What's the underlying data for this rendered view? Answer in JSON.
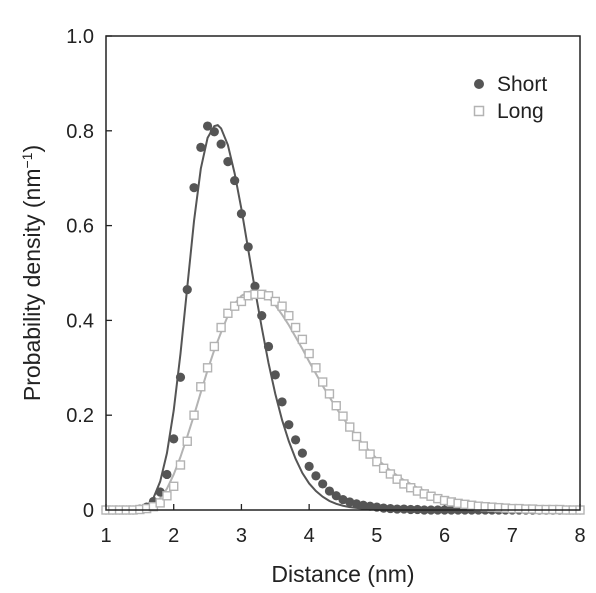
{
  "chart_data": {
    "type": "scatter",
    "xlabel": "Distance (nm)",
    "ylabel": {
      "base": "Probability density (nm",
      "sup": "−1",
      "close": ")"
    },
    "xlim": [
      1,
      8
    ],
    "ylim": [
      0,
      1.0
    ],
    "x_ticks": [
      "1",
      "2",
      "3",
      "4",
      "5",
      "6",
      "7",
      "8"
    ],
    "y_ticks": [
      "0",
      "0.2",
      "0.4",
      "0.6",
      "0.8",
      "1.0"
    ],
    "legend_position": "top-right",
    "series": [
      {
        "name": "Short",
        "marker": "filled-circle",
        "color": "#555555",
        "points": [
          {
            "x": 1.0,
            "y": 0.0
          },
          {
            "x": 1.1,
            "y": 0.0
          },
          {
            "x": 1.2,
            "y": 0.0
          },
          {
            "x": 1.3,
            "y": 0.0
          },
          {
            "x": 1.4,
            "y": 0.0
          },
          {
            "x": 1.5,
            "y": 0.002
          },
          {
            "x": 1.6,
            "y": 0.006
          },
          {
            "x": 1.7,
            "y": 0.018
          },
          {
            "x": 1.8,
            "y": 0.038
          },
          {
            "x": 1.9,
            "y": 0.075
          },
          {
            "x": 2.0,
            "y": 0.15
          },
          {
            "x": 2.1,
            "y": 0.28
          },
          {
            "x": 2.2,
            "y": 0.465
          },
          {
            "x": 2.3,
            "y": 0.68
          },
          {
            "x": 2.4,
            "y": 0.765
          },
          {
            "x": 2.5,
            "y": 0.81
          },
          {
            "x": 2.6,
            "y": 0.798
          },
          {
            "x": 2.7,
            "y": 0.772
          },
          {
            "x": 2.8,
            "y": 0.735
          },
          {
            "x": 2.9,
            "y": 0.695
          },
          {
            "x": 3.0,
            "y": 0.625
          },
          {
            "x": 3.1,
            "y": 0.555
          },
          {
            "x": 3.2,
            "y": 0.472
          },
          {
            "x": 3.3,
            "y": 0.41
          },
          {
            "x": 3.4,
            "y": 0.345
          },
          {
            "x": 3.5,
            "y": 0.285
          },
          {
            "x": 3.6,
            "y": 0.228
          },
          {
            "x": 3.7,
            "y": 0.18
          },
          {
            "x": 3.8,
            "y": 0.148
          },
          {
            "x": 3.9,
            "y": 0.12
          },
          {
            "x": 4.0,
            "y": 0.092
          },
          {
            "x": 4.1,
            "y": 0.072
          },
          {
            "x": 4.2,
            "y": 0.055
          },
          {
            "x": 4.3,
            "y": 0.04
          },
          {
            "x": 4.4,
            "y": 0.03
          },
          {
            "x": 4.5,
            "y": 0.022
          },
          {
            "x": 4.6,
            "y": 0.017
          },
          {
            "x": 4.7,
            "y": 0.013
          },
          {
            "x": 4.8,
            "y": 0.01
          },
          {
            "x": 4.9,
            "y": 0.008
          },
          {
            "x": 5.0,
            "y": 0.006
          },
          {
            "x": 5.1,
            "y": 0.004
          },
          {
            "x": 5.2,
            "y": 0.003
          },
          {
            "x": 5.3,
            "y": 0.002
          },
          {
            "x": 5.4,
            "y": 0.002
          },
          {
            "x": 5.5,
            "y": 0.001
          },
          {
            "x": 5.6,
            "y": 0.001
          },
          {
            "x": 5.7,
            "y": 0.0
          },
          {
            "x": 5.8,
            "y": 0.0
          },
          {
            "x": 5.9,
            "y": 0.0
          },
          {
            "x": 6.0,
            "y": 0.0
          },
          {
            "x": 6.1,
            "y": 0.0
          },
          {
            "x": 6.2,
            "y": 0.0
          },
          {
            "x": 6.3,
            "y": 0.0
          },
          {
            "x": 6.4,
            "y": 0.0
          },
          {
            "x": 6.5,
            "y": 0.0
          },
          {
            "x": 6.6,
            "y": 0.0
          },
          {
            "x": 6.7,
            "y": 0.0
          },
          {
            "x": 6.8,
            "y": 0.0
          },
          {
            "x": 6.9,
            "y": 0.0
          },
          {
            "x": 7.0,
            "y": 0.0
          },
          {
            "x": 7.1,
            "y": 0.0
          },
          {
            "x": 7.2,
            "y": 0.0
          },
          {
            "x": 7.3,
            "y": 0.0
          },
          {
            "x": 7.4,
            "y": 0.0
          },
          {
            "x": 7.5,
            "y": 0.0
          },
          {
            "x": 7.6,
            "y": 0.0
          },
          {
            "x": 7.7,
            "y": 0.0
          },
          {
            "x": 7.8,
            "y": 0.0
          },
          {
            "x": 7.9,
            "y": 0.0
          },
          {
            "x": 8.0,
            "y": 0.0
          }
        ],
        "fit": [
          {
            "x": 1.0,
            "y": 0.0
          },
          {
            "x": 1.4,
            "y": 0.0
          },
          {
            "x": 1.6,
            "y": 0.008
          },
          {
            "x": 1.7,
            "y": 0.025
          },
          {
            "x": 1.8,
            "y": 0.06
          },
          {
            "x": 1.9,
            "y": 0.12
          },
          {
            "x": 2.0,
            "y": 0.21
          },
          {
            "x": 2.1,
            "y": 0.33
          },
          {
            "x": 2.2,
            "y": 0.47
          },
          {
            "x": 2.3,
            "y": 0.61
          },
          {
            "x": 2.4,
            "y": 0.72
          },
          {
            "x": 2.5,
            "y": 0.785
          },
          {
            "x": 2.6,
            "y": 0.81
          },
          {
            "x": 2.65,
            "y": 0.812
          },
          {
            "x": 2.7,
            "y": 0.805
          },
          {
            "x": 2.8,
            "y": 0.77
          },
          {
            "x": 2.9,
            "y": 0.71
          },
          {
            "x": 3.0,
            "y": 0.635
          },
          {
            "x": 3.1,
            "y": 0.55
          },
          {
            "x": 3.2,
            "y": 0.465
          },
          {
            "x": 3.3,
            "y": 0.385
          },
          {
            "x": 3.4,
            "y": 0.31
          },
          {
            "x": 3.5,
            "y": 0.245
          },
          {
            "x": 3.6,
            "y": 0.19
          },
          {
            "x": 3.7,
            "y": 0.145
          },
          {
            "x": 3.8,
            "y": 0.108
          },
          {
            "x": 3.9,
            "y": 0.078
          },
          {
            "x": 4.0,
            "y": 0.056
          },
          {
            "x": 4.1,
            "y": 0.04
          },
          {
            "x": 4.2,
            "y": 0.028
          },
          {
            "x": 4.3,
            "y": 0.019
          },
          {
            "x": 4.4,
            "y": 0.013
          },
          {
            "x": 4.5,
            "y": 0.009
          },
          {
            "x": 4.6,
            "y": 0.006
          },
          {
            "x": 4.8,
            "y": 0.003
          },
          {
            "x": 5.0,
            "y": 0.001
          },
          {
            "x": 5.3,
            "y": 0.0
          },
          {
            "x": 8.0,
            "y": 0.0
          }
        ]
      },
      {
        "name": "Long",
        "marker": "open-square",
        "color": "#b3b3b3",
        "points": [
          {
            "x": 1.0,
            "y": 0.0
          },
          {
            "x": 1.1,
            "y": 0.0
          },
          {
            "x": 1.2,
            "y": 0.0
          },
          {
            "x": 1.3,
            "y": 0.0
          },
          {
            "x": 1.4,
            "y": 0.0
          },
          {
            "x": 1.5,
            "y": 0.001
          },
          {
            "x": 1.6,
            "y": 0.003
          },
          {
            "x": 1.7,
            "y": 0.007
          },
          {
            "x": 1.8,
            "y": 0.015
          },
          {
            "x": 1.9,
            "y": 0.03
          },
          {
            "x": 2.0,
            "y": 0.05
          },
          {
            "x": 2.1,
            "y": 0.095
          },
          {
            "x": 2.2,
            "y": 0.145
          },
          {
            "x": 2.3,
            "y": 0.2
          },
          {
            "x": 2.4,
            "y": 0.26
          },
          {
            "x": 2.5,
            "y": 0.3
          },
          {
            "x": 2.6,
            "y": 0.345
          },
          {
            "x": 2.7,
            "y": 0.385
          },
          {
            "x": 2.8,
            "y": 0.415
          },
          {
            "x": 2.9,
            "y": 0.43
          },
          {
            "x": 3.0,
            "y": 0.44
          },
          {
            "x": 3.1,
            "y": 0.452
          },
          {
            "x": 3.2,
            "y": 0.455
          },
          {
            "x": 3.3,
            "y": 0.455
          },
          {
            "x": 3.4,
            "y": 0.452
          },
          {
            "x": 3.5,
            "y": 0.44
          },
          {
            "x": 3.6,
            "y": 0.43
          },
          {
            "x": 3.7,
            "y": 0.41
          },
          {
            "x": 3.8,
            "y": 0.385
          },
          {
            "x": 3.9,
            "y": 0.36
          },
          {
            "x": 4.0,
            "y": 0.33
          },
          {
            "x": 4.1,
            "y": 0.3
          },
          {
            "x": 4.2,
            "y": 0.27
          },
          {
            "x": 4.3,
            "y": 0.245
          },
          {
            "x": 4.4,
            "y": 0.22
          },
          {
            "x": 4.5,
            "y": 0.198
          },
          {
            "x": 4.6,
            "y": 0.175
          },
          {
            "x": 4.7,
            "y": 0.155
          },
          {
            "x": 4.8,
            "y": 0.135
          },
          {
            "x": 4.9,
            "y": 0.118
          },
          {
            "x": 5.0,
            "y": 0.102
          },
          {
            "x": 5.1,
            "y": 0.088
          },
          {
            "x": 5.2,
            "y": 0.076
          },
          {
            "x": 5.3,
            "y": 0.065
          },
          {
            "x": 5.4,
            "y": 0.055
          },
          {
            "x": 5.5,
            "y": 0.047
          },
          {
            "x": 5.6,
            "y": 0.04
          },
          {
            "x": 5.7,
            "y": 0.034
          },
          {
            "x": 5.8,
            "y": 0.029
          },
          {
            "x": 5.9,
            "y": 0.024
          },
          {
            "x": 6.0,
            "y": 0.02
          },
          {
            "x": 6.1,
            "y": 0.017
          },
          {
            "x": 6.2,
            "y": 0.014
          },
          {
            "x": 6.3,
            "y": 0.012
          },
          {
            "x": 6.4,
            "y": 0.01
          },
          {
            "x": 6.5,
            "y": 0.008
          },
          {
            "x": 6.6,
            "y": 0.007
          },
          {
            "x": 6.7,
            "y": 0.006
          },
          {
            "x": 6.8,
            "y": 0.005
          },
          {
            "x": 6.9,
            "y": 0.004
          },
          {
            "x": 7.0,
            "y": 0.003
          },
          {
            "x": 7.1,
            "y": 0.003
          },
          {
            "x": 7.2,
            "y": 0.002
          },
          {
            "x": 7.3,
            "y": 0.002
          },
          {
            "x": 7.4,
            "y": 0.001
          },
          {
            "x": 7.5,
            "y": 0.001
          },
          {
            "x": 7.6,
            "y": 0.001
          },
          {
            "x": 7.7,
            "y": 0.001
          },
          {
            "x": 7.8,
            "y": 0.0
          },
          {
            "x": 7.9,
            "y": 0.0
          },
          {
            "x": 8.0,
            "y": 0.0
          }
        ],
        "fit": [
          {
            "x": 1.0,
            "y": 0.0
          },
          {
            "x": 1.5,
            "y": 0.002
          },
          {
            "x": 1.7,
            "y": 0.012
          },
          {
            "x": 1.8,
            "y": 0.025
          },
          {
            "x": 1.9,
            "y": 0.045
          },
          {
            "x": 2.0,
            "y": 0.075
          },
          {
            "x": 2.1,
            "y": 0.112
          },
          {
            "x": 2.2,
            "y": 0.155
          },
          {
            "x": 2.3,
            "y": 0.2
          },
          {
            "x": 2.4,
            "y": 0.248
          },
          {
            "x": 2.5,
            "y": 0.295
          },
          {
            "x": 2.6,
            "y": 0.338
          },
          {
            "x": 2.7,
            "y": 0.375
          },
          {
            "x": 2.8,
            "y": 0.41
          },
          {
            "x": 2.9,
            "y": 0.435
          },
          {
            "x": 3.0,
            "y": 0.452
          },
          {
            "x": 3.1,
            "y": 0.46
          },
          {
            "x": 3.2,
            "y": 0.462
          },
          {
            "x": 3.3,
            "y": 0.458
          },
          {
            "x": 3.4,
            "y": 0.448
          },
          {
            "x": 3.5,
            "y": 0.432
          },
          {
            "x": 3.6,
            "y": 0.412
          },
          {
            "x": 3.7,
            "y": 0.39
          },
          {
            "x": 3.8,
            "y": 0.365
          },
          {
            "x": 3.9,
            "y": 0.34
          },
          {
            "x": 4.0,
            "y": 0.313
          },
          {
            "x": 4.2,
            "y": 0.262
          },
          {
            "x": 4.4,
            "y": 0.215
          },
          {
            "x": 4.6,
            "y": 0.174
          },
          {
            "x": 4.8,
            "y": 0.138
          },
          {
            "x": 5.0,
            "y": 0.108
          },
          {
            "x": 5.2,
            "y": 0.083
          },
          {
            "x": 5.4,
            "y": 0.063
          },
          {
            "x": 5.6,
            "y": 0.047
          },
          {
            "x": 5.8,
            "y": 0.035
          },
          {
            "x": 6.0,
            "y": 0.026
          },
          {
            "x": 6.2,
            "y": 0.019
          },
          {
            "x": 6.5,
            "y": 0.011
          },
          {
            "x": 7.0,
            "y": 0.005
          },
          {
            "x": 7.5,
            "y": 0.002
          },
          {
            "x": 8.0,
            "y": 0.0
          }
        ]
      }
    ]
  }
}
